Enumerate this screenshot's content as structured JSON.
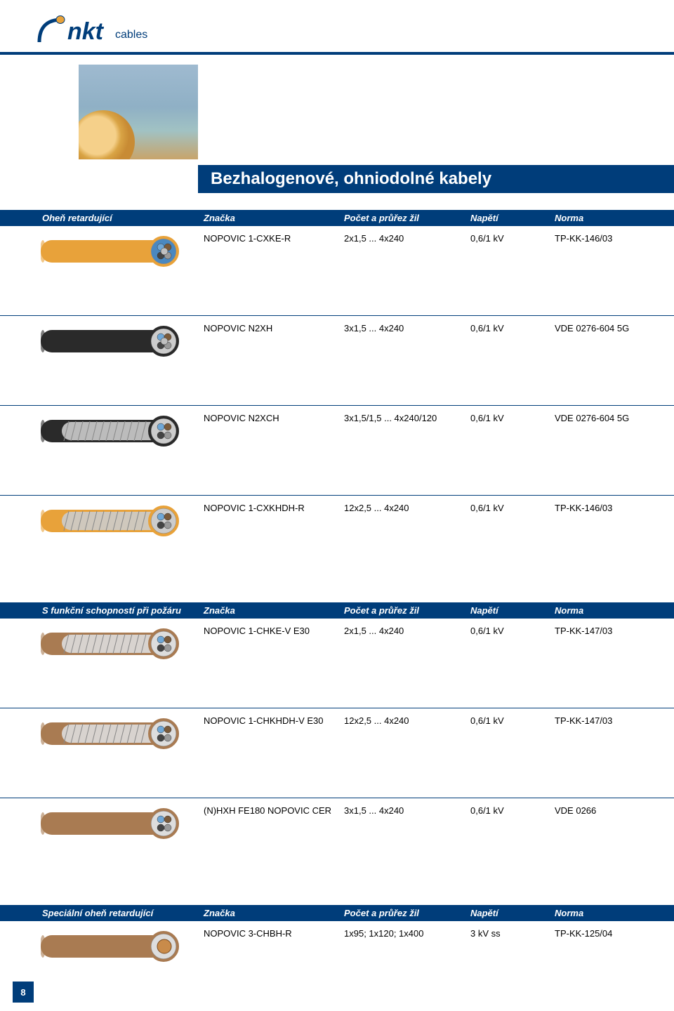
{
  "logo": {
    "brand": "nkt",
    "sub": "cables"
  },
  "title": "Bezhalogenové, ohniodolné kabely",
  "page_number": "8",
  "sections": [
    {
      "heading": "Oheň retardující",
      "columns": [
        "Značka",
        "Počet a průřez žil",
        "Napětí",
        "Norma"
      ],
      "rows": [
        {
          "img_key": "orange_blue",
          "brand": "NOPOVIC 1-CXKE-R",
          "size": "2x1,5 ... 4x240",
          "volt": "0,6/1 kV",
          "norm": "TP-KK-146/03"
        },
        {
          "img_key": "black",
          "brand": "NOPOVIC N2XH",
          "size": "3x1,5 ... 4x240",
          "volt": "0,6/1 kV",
          "norm": "VDE 0276-604 5G"
        },
        {
          "img_key": "black_armor",
          "brand": "NOPOVIC N2XCH",
          "size": "3x1,5/1,5 ... 4x240/120",
          "volt": "0,6/1 kV",
          "norm": "VDE 0276-604 5G"
        },
        {
          "img_key": "orange_armor",
          "brand": "NOPOVIC 1-CXKHDH-R",
          "size": "12x2,5 ... 4x240",
          "volt": "0,6/1 kV",
          "norm": "TP-KK-146/03"
        }
      ]
    },
    {
      "heading": "S funkční schopností při požáru",
      "columns": [
        "Značka",
        "Počet a průřez žil",
        "Napětí",
        "Norma"
      ],
      "rows": [
        {
          "img_key": "brown_armor",
          "brand": "NOPOVIC 1-CHKE-V E30",
          "size": "2x1,5 ... 4x240",
          "volt": "0,6/1 kV",
          "norm": "TP-KK-147/03"
        },
        {
          "img_key": "brown_armor",
          "brand": "NOPOVIC 1-CHKHDH-V E30",
          "size": "12x2,5 ... 4x240",
          "volt": "0,6/1 kV",
          "norm": "TP-KK-147/03"
        },
        {
          "img_key": "brown_plain",
          "brand": "(N)HXH FE180 NOPOVIC CER",
          "size": "3x1,5 ... 4x240",
          "volt": "0,6/1 kV",
          "norm": "VDE 0266"
        }
      ]
    },
    {
      "heading": "Speciální oheň retardující",
      "columns": [
        "Značka",
        "Počet a průřez žil",
        "Napětí",
        "Norma"
      ],
      "rows": [
        {
          "img_key": "brown_single",
          "brand": "NOPOVIC 3-CHBH-R",
          "size": "1x95; 1x120; 1x400",
          "volt": "3 kV ss",
          "norm": "TP-KK-125/04"
        }
      ]
    }
  ],
  "cable_styles": {
    "orange_blue": {
      "jacket": "#e8a23a",
      "inner": "#4a88c0",
      "armor": false,
      "cores": 5
    },
    "black": {
      "jacket": "#2a2a2a",
      "inner": "#cccccc",
      "armor": false,
      "cores": 5
    },
    "black_armor": {
      "jacket": "#2a2a2a",
      "inner": "#cccccc",
      "armor": true,
      "cores": 4
    },
    "orange_armor": {
      "jacket": "#e8a23a",
      "inner": "#cccccc",
      "armor": true,
      "cores": 4
    },
    "brown_armor": {
      "jacket": "#a97b52",
      "inner": "#dddddd",
      "armor": true,
      "cores": 4
    },
    "brown_plain": {
      "jacket": "#a97b52",
      "inner": "#dddddd",
      "armor": false,
      "cores": 4
    },
    "brown_single": {
      "jacket": "#a97b52",
      "inner": "#dddddd",
      "armor": false,
      "cores": 1
    }
  },
  "colors": {
    "primary": "#003d7a",
    "white": "#ffffff"
  }
}
